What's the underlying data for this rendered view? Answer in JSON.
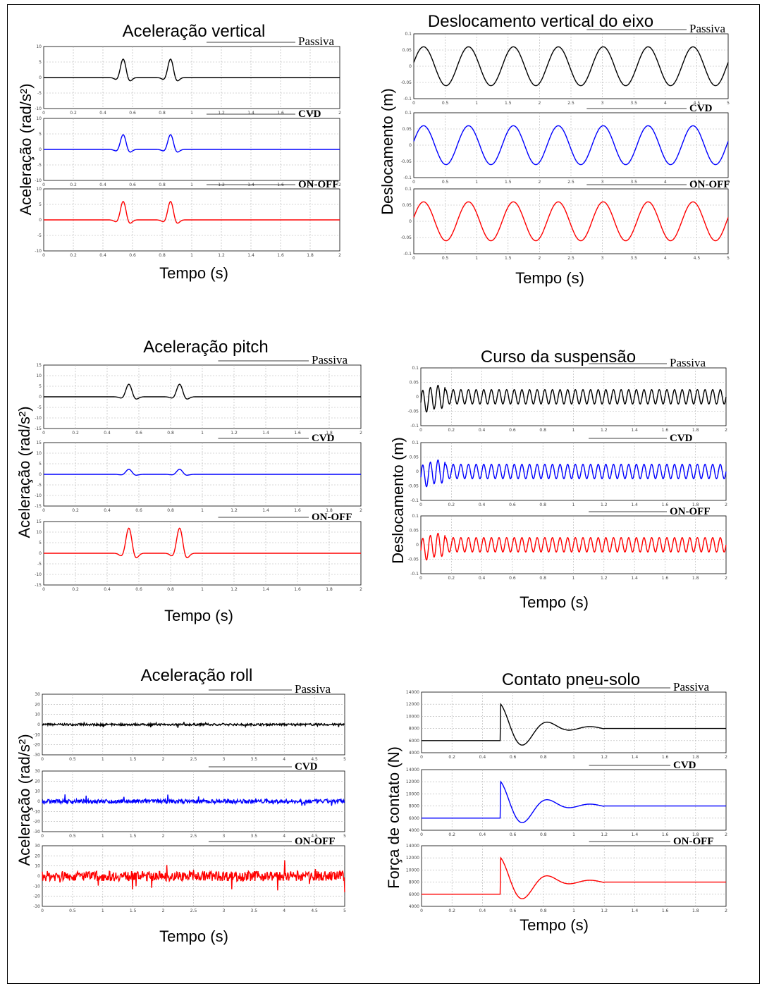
{
  "colors": {
    "passiva": "#000000",
    "cvd": "#0000ff",
    "onoff": "#ff0000",
    "grid": "#b0b0b0"
  },
  "chart_data": [
    {
      "type": "line",
      "title": "Aceleração vertical",
      "ylabel": "Aceleração (rad/s²)",
      "xlabel": "Tempo (s)",
      "x_range": [
        0,
        2
      ],
      "x_ticks": [
        "0",
        "0.2",
        "0.4",
        "0.6",
        "0.8",
        "1",
        "1.2",
        "1.4",
        "1.6",
        "1.8",
        "2"
      ],
      "y_range": [
        -10,
        10
      ],
      "y_ticks": [
        "10",
        "5",
        "0",
        "-5",
        "-10"
      ],
      "grid": true,
      "series": [
        {
          "name": "Passiva",
          "kind": "pulse",
          "peak": 5
        },
        {
          "name": "CVD",
          "kind": "pulse",
          "peak": 4
        },
        {
          "name": "ON-OFF",
          "kind": "pulse",
          "peak": 5
        }
      ]
    },
    {
      "type": "line",
      "title": "Deslocamento vertical do eixo",
      "ylabel": "Deslocamento (m)",
      "xlabel": "Tempo (s)",
      "x_range": [
        0,
        5
      ],
      "x_ticks": [
        "0",
        "0.5",
        "1",
        "1.5",
        "2",
        "2.5",
        "3",
        "3.5",
        "4",
        "4.5",
        "5"
      ],
      "y_range": [
        -0.1,
        0.1
      ],
      "y_ticks": [
        "0.1",
        "0.05",
        "0",
        "-0.05",
        "-0.1"
      ],
      "grid": true,
      "series": [
        {
          "name": "Passiva",
          "kind": "sine",
          "amplitude": 0.06,
          "cycles": 7
        },
        {
          "name": "CVD",
          "kind": "sine",
          "amplitude": 0.06,
          "cycles": 7
        },
        {
          "name": "ON-OFF",
          "kind": "sine",
          "amplitude": 0.06,
          "cycles": 7
        }
      ]
    },
    {
      "type": "line",
      "title": "Aceleração pitch",
      "ylabel": "Aceleração (rad/s²)",
      "xlabel": "Tempo (s)",
      "x_range": [
        0,
        2
      ],
      "x_ticks": [
        "0",
        "0.2",
        "0.4",
        "0.6",
        "0.8",
        "1",
        "1.2",
        "1.4",
        "1.6",
        "1.8",
        "2"
      ],
      "y_range": [
        -15,
        15
      ],
      "y_ticks": [
        "15",
        "10",
        "5",
        "0",
        "-5",
        "-10",
        "-15"
      ],
      "grid": true,
      "series": [
        {
          "name": "Passiva",
          "kind": "pulse",
          "peak": 5
        },
        {
          "name": "CVD",
          "kind": "pulse",
          "peak": 2
        },
        {
          "name": "ON-OFF",
          "kind": "pulse",
          "peak": 10
        }
      ]
    },
    {
      "type": "line",
      "title": "Curso da suspensão",
      "ylabel": "Deslocamento (m)",
      "xlabel": "Tempo (s)",
      "x_range": [
        0,
        2
      ],
      "x_ticks": [
        "0",
        "0.2",
        "0.4",
        "0.6",
        "0.8",
        "1",
        "1.2",
        "1.4",
        "1.6",
        "1.8",
        "2"
      ],
      "y_range": [
        -0.1,
        0.1
      ],
      "y_ticks": [
        "0.1",
        "0.05",
        "0",
        "-0.05",
        "-0.1"
      ],
      "grid": true,
      "series": [
        {
          "name": "Passiva",
          "kind": "osc",
          "amplitude": 0.025,
          "cycles": 40
        },
        {
          "name": "CVD",
          "kind": "osc",
          "amplitude": 0.025,
          "cycles": 40
        },
        {
          "name": "ON-OFF",
          "kind": "osc",
          "amplitude": 0.025,
          "cycles": 40
        }
      ]
    },
    {
      "type": "line",
      "title": "Aceleração roll",
      "ylabel": "Aceleração (rad/s²)",
      "xlabel": "Tempo (s)",
      "x_range": [
        0,
        5
      ],
      "x_ticks": [
        "0",
        "0.5",
        "1",
        "1.5",
        "2",
        "2.5",
        "3",
        "3.5",
        "4",
        "4.5",
        "5"
      ],
      "y_range": [
        -30,
        30
      ],
      "y_ticks": [
        "30",
        "20",
        "10",
        "0",
        "-10",
        "-20",
        "-30"
      ],
      "grid": true,
      "series": [
        {
          "name": "Passiva",
          "kind": "noise",
          "amplitude": 2
        },
        {
          "name": "CVD",
          "kind": "noise",
          "amplitude": 4
        },
        {
          "name": "ON-OFF",
          "kind": "noise",
          "amplitude": 10
        }
      ]
    },
    {
      "type": "line",
      "title": "Contato pneu-solo",
      "ylabel": "Força de contato (N)",
      "xlabel": "Tempo (s)",
      "x_range": [
        0,
        2
      ],
      "x_ticks": [
        "0",
        "0.2",
        "0.4",
        "0.6",
        "0.8",
        "1",
        "1.2",
        "1.4",
        "1.6",
        "1.8",
        "2"
      ],
      "y_range": [
        4000,
        14000
      ],
      "y_ticks": [
        "14000",
        "12000",
        "10000",
        "8000",
        "6000",
        "4000"
      ],
      "grid": true,
      "series": [
        {
          "name": "Passiva",
          "kind": "contact",
          "base": 6000,
          "peak": 12000,
          "final": 8000
        },
        {
          "name": "CVD",
          "kind": "contact",
          "base": 6000,
          "peak": 12000,
          "final": 8000
        },
        {
          "name": "ON-OFF",
          "kind": "contact",
          "base": 6000,
          "peak": 12000,
          "final": 8000
        }
      ]
    }
  ]
}
